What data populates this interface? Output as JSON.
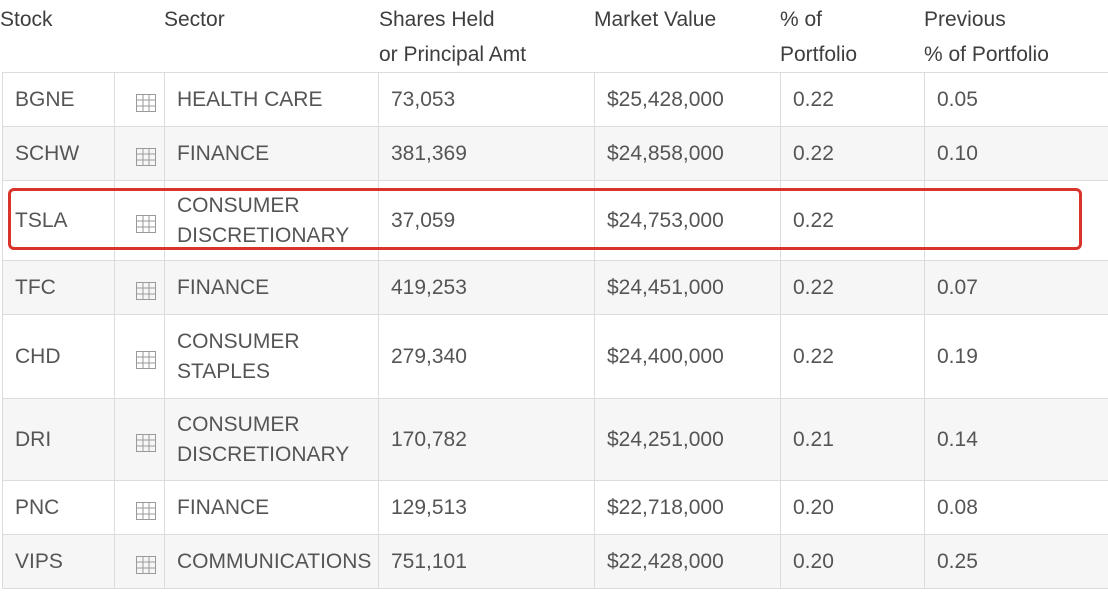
{
  "headers": {
    "stock": "Stock",
    "sector": "Sector",
    "shares_line1": "Shares Held",
    "shares_line2": "or Principal Amt",
    "market_value": "Market Value",
    "pct_line1": "% of",
    "pct_line2": "Portfolio",
    "prev_line1": "Previous",
    "prev_line2": "% of Portfolio"
  },
  "rows": [
    {
      "ticker": "BGNE",
      "sector_line1": "HEALTH CARE",
      "sector_line2": "",
      "shares": "73,053",
      "value": "$25,428,000",
      "pct": "0.22",
      "prev": "0.05"
    },
    {
      "ticker": "SCHW",
      "sector_line1": "FINANCE",
      "sector_line2": "",
      "shares": "381,369",
      "value": "$24,858,000",
      "pct": "0.22",
      "prev": "0.10"
    },
    {
      "ticker": "TSLA",
      "sector_line1": "CONSUMER",
      "sector_line2": "DISCRETIONARY",
      "shares": "37,059",
      "value": "$24,753,000",
      "pct": "0.22",
      "prev": ""
    },
    {
      "ticker": "TFC",
      "sector_line1": "FINANCE",
      "sector_line2": "",
      "shares": "419,253",
      "value": "$24,451,000",
      "pct": "0.22",
      "prev": "0.07"
    },
    {
      "ticker": "CHD",
      "sector_line1": "CONSUMER",
      "sector_line2": "STAPLES",
      "shares": "279,340",
      "value": "$24,400,000",
      "pct": "0.22",
      "prev": "0.19"
    },
    {
      "ticker": "DRI",
      "sector_line1": "CONSUMER",
      "sector_line2": "DISCRETIONARY",
      "shares": "170,782",
      "value": "$24,251,000",
      "pct": "0.21",
      "prev": "0.14"
    },
    {
      "ticker": "PNC",
      "sector_line1": "FINANCE",
      "sector_line2": "",
      "shares": "129,513",
      "value": "$22,718,000",
      "pct": "0.20",
      "prev": "0.08"
    },
    {
      "ticker": "VIPS",
      "sector_line1": "COMMUNICATIONS",
      "sector_line2": "",
      "shares": "751,101",
      "value": "$22,428,000",
      "pct": "0.20",
      "prev": "0.25"
    }
  ],
  "highlighted_ticker": "TSLA",
  "colors": {
    "ticker_link": "#1a9ab4",
    "highlight_border": "#d9342b",
    "row_stripe": "#f6f6f6"
  },
  "icons": {
    "row_icon": "table-grid-icon"
  }
}
